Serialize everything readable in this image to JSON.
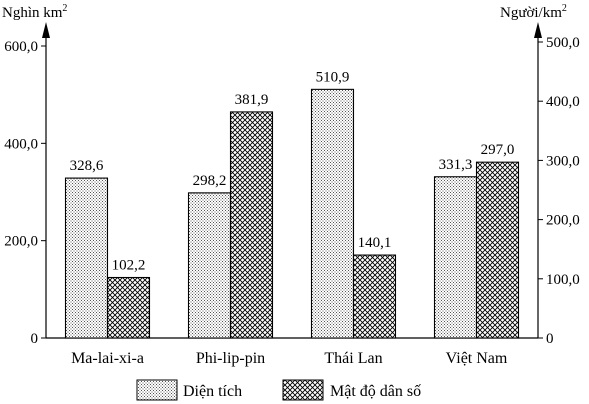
{
  "chart_data": {
    "type": "bar",
    "categories": [
      "Ma-lai-xi-a",
      "Phi-lip-pin",
      "Thái Lan",
      "Việt Nam"
    ],
    "series": [
      {
        "name": "Diện tích",
        "axis": "left",
        "values": [
          328.6,
          298.2,
          510.9,
          331.3
        ],
        "labels": [
          "328,6",
          "298,2",
          "510,9",
          "331,3"
        ],
        "fill": "dotted"
      },
      {
        "name": "Mật độ dân số",
        "axis": "right",
        "values": [
          102.2,
          381.9,
          140.1,
          297.0
        ],
        "labels": [
          "102,2",
          "381,9",
          "140,1",
          "297,0"
        ],
        "fill": "cross-hatched"
      }
    ],
    "y_left": {
      "unit": "Nghìn km",
      "unit_sup": "2",
      "ylim": [
        0,
        600
      ],
      "ticks": [
        0,
        200,
        400,
        600
      ],
      "tick_labels": [
        "0",
        "200,0",
        "400,0",
        "600,0"
      ]
    },
    "y_right": {
      "unit": "Người/km",
      "unit_sup": "2",
      "ylim": [
        0,
        500
      ],
      "ticks": [
        0,
        100,
        200,
        300,
        400,
        500
      ],
      "tick_labels": [
        "0",
        "100,0",
        "200,0",
        "300,0",
        "400,0",
        "500,0"
      ]
    },
    "grid": false,
    "legend_position": "bottom"
  }
}
